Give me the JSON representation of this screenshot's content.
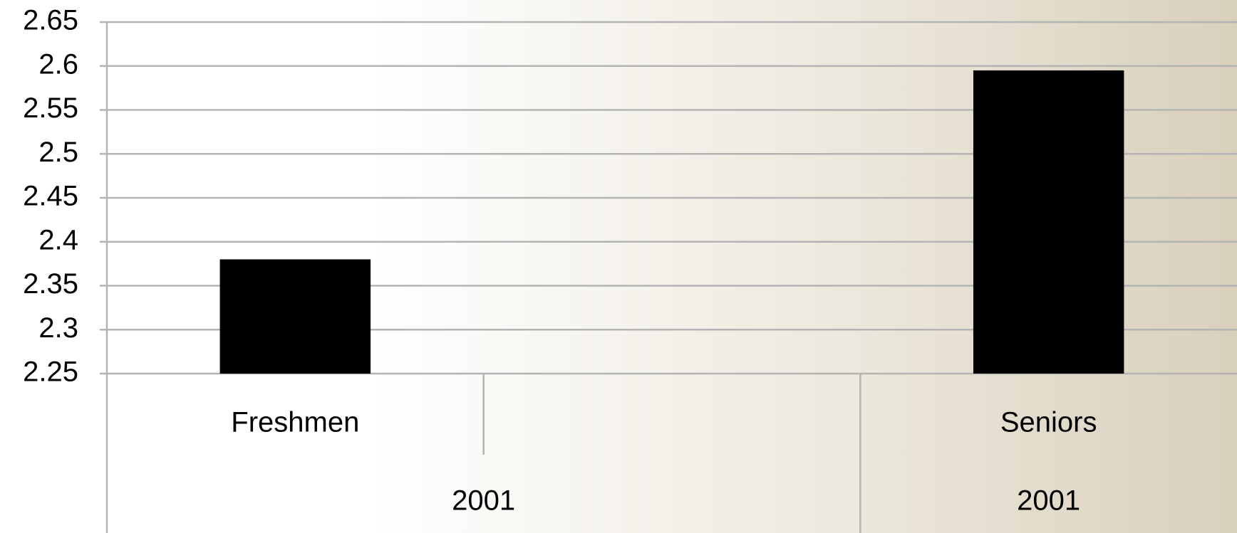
{
  "chart_data": {
    "type": "bar",
    "categories": [
      "Freshmen",
      null,
      "Seniors"
    ],
    "values": [
      2.38,
      null,
      2.595
    ],
    "groups": [
      {
        "label": "2001",
        "size": 2
      },
      {
        "label": "2001",
        "size": 1
      }
    ],
    "color": "#000000",
    "ylim": [
      2.25,
      2.65
    ],
    "yticks": [
      2.25,
      2.3,
      2.35,
      2.4,
      2.45,
      2.5,
      2.55,
      2.6,
      2.65
    ],
    "grid": true
  }
}
